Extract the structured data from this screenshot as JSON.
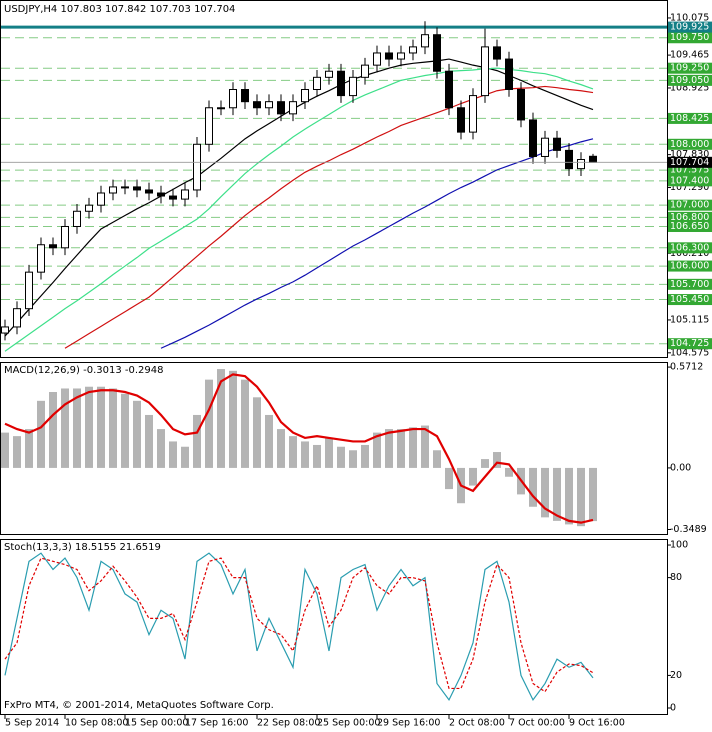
{
  "chart_data": [
    {
      "type": "candlestick",
      "title": "USDJPY,H4  107.803 107.842 107.703 107.704",
      "categories": [
        "5 Sep 2014",
        null,
        null,
        null,
        null,
        "10 Sep 08:00",
        null,
        null,
        null,
        null,
        "15 Sep 00:00",
        null,
        null,
        null,
        null,
        "17 Sep 16:00",
        null,
        null,
        null,
        null,
        null,
        "22 Sep 08:00",
        null,
        null,
        null,
        null,
        "25 Sep 00:00",
        null,
        null,
        null,
        null,
        "29 Sep 16:00",
        null,
        null,
        null,
        null,
        null,
        "2 Oct 08:00",
        null,
        null,
        null,
        null,
        "7 Oct 00:00",
        null,
        null,
        null,
        null,
        "9 Oct 16:00",
        null,
        null
      ],
      "open": [
        104.9,
        105.0,
        105.3,
        105.9,
        106.35,
        106.3,
        106.65,
        106.9,
        107.0,
        107.2,
        107.3,
        107.3,
        107.25,
        107.2,
        107.15,
        107.1,
        107.25,
        108.0,
        108.6,
        108.6,
        108.9,
        108.7,
        108.6,
        108.7,
        108.5,
        108.7,
        108.9,
        109.1,
        109.2,
        108.8,
        109.1,
        109.3,
        109.5,
        109.4,
        109.5,
        109.6,
        109.8,
        109.2,
        108.6,
        108.2,
        108.8,
        109.6,
        109.4,
        108.9,
        108.4,
        107.8,
        108.1,
        107.9,
        107.6,
        107.803
      ],
      "high": [
        105.12,
        105.42,
        106.02,
        106.47,
        106.47,
        106.77,
        107.02,
        107.12,
        107.32,
        107.42,
        107.42,
        107.42,
        107.37,
        107.32,
        107.27,
        107.37,
        108.12,
        108.72,
        108.72,
        109.02,
        109.02,
        108.82,
        108.82,
        108.82,
        108.82,
        109.02,
        109.22,
        109.32,
        109.32,
        109.22,
        109.42,
        109.62,
        109.62,
        109.62,
        109.72,
        110.02,
        109.92,
        109.32,
        108.72,
        108.92,
        109.9,
        109.72,
        109.52,
        109.02,
        108.52,
        108.22,
        108.22,
        108.02,
        107.87,
        107.842
      ],
      "low": [
        104.78,
        104.88,
        105.18,
        105.78,
        106.18,
        106.18,
        106.53,
        106.78,
        106.88,
        107.08,
        107.18,
        107.13,
        107.08,
        107.03,
        106.98,
        106.98,
        107.13,
        107.88,
        108.48,
        108.48,
        108.58,
        108.48,
        108.48,
        108.38,
        108.38,
        108.58,
        108.78,
        108.98,
        108.68,
        108.68,
        108.98,
        109.18,
        109.28,
        109.28,
        109.38,
        109.48,
        109.08,
        108.48,
        108.08,
        108.08,
        108.68,
        109.28,
        108.78,
        108.28,
        107.68,
        107.68,
        107.78,
        107.48,
        107.48,
        107.703
      ],
      "close": [
        105.0,
        105.3,
        105.9,
        106.35,
        106.3,
        106.65,
        106.9,
        107.0,
        107.2,
        107.3,
        107.3,
        107.25,
        107.2,
        107.15,
        107.1,
        107.25,
        108.0,
        108.6,
        108.6,
        108.9,
        108.7,
        108.6,
        108.7,
        108.5,
        108.7,
        108.9,
        109.1,
        109.2,
        108.8,
        109.1,
        109.3,
        109.5,
        109.4,
        109.5,
        109.6,
        109.8,
        109.2,
        108.6,
        108.2,
        108.8,
        109.6,
        109.4,
        108.9,
        108.4,
        107.8,
        108.1,
        107.9,
        107.6,
        107.75,
        107.704
      ],
      "up_color": "#ffffff",
      "down_color": "#000000",
      "wick_color": "#000000",
      "lines": [
        {
          "color": "#000000",
          "values": [
            104.85,
            105.07,
            105.29,
            105.51,
            105.73,
            105.96,
            106.18,
            106.4,
            106.61,
            106.72,
            106.83,
            106.94,
            107.04,
            107.15,
            107.26,
            107.37,
            107.47,
            107.62,
            107.77,
            107.93,
            108.09,
            108.22,
            108.34,
            108.46,
            108.58,
            108.69,
            108.79,
            108.88,
            108.98,
            109.07,
            109.13,
            109.19,
            109.25,
            109.3,
            109.33,
            109.35,
            109.37,
            109.4,
            109.35,
            109.3,
            109.26,
            109.21,
            109.13,
            109.05,
            108.96,
            108.88,
            108.8,
            108.72,
            108.64,
            108.57
          ]
        },
        {
          "color": "#3ee08a",
          "values": [
            104.6,
            104.74,
            104.88,
            105.02,
            105.16,
            105.3,
            105.43,
            105.57,
            105.71,
            105.86,
            106.0,
            106.14,
            106.29,
            106.41,
            106.53,
            106.65,
            106.77,
            106.94,
            107.14,
            107.33,
            107.52,
            107.68,
            107.83,
            107.97,
            108.12,
            108.25,
            108.37,
            108.49,
            108.61,
            108.72,
            108.81,
            108.89,
            108.97,
            109.05,
            109.09,
            109.13,
            109.16,
            109.2,
            109.21,
            109.22,
            109.24,
            109.25,
            109.23,
            109.21,
            109.18,
            109.16,
            109.11,
            109.04,
            108.98,
            108.91
          ]
        },
        {
          "color": "#d01010",
          "values": [
            null,
            null,
            null,
            null,
            null,
            104.65,
            104.77,
            104.89,
            105.01,
            105.13,
            105.25,
            105.37,
            105.49,
            105.65,
            105.82,
            105.99,
            106.16,
            106.33,
            106.49,
            106.66,
            106.83,
            106.98,
            107.12,
            107.27,
            107.41,
            107.54,
            107.64,
            107.73,
            107.83,
            107.92,
            108.02,
            108.12,
            108.21,
            108.31,
            108.38,
            108.45,
            108.52,
            108.59,
            108.67,
            108.74,
            108.81,
            108.88,
            108.91,
            108.92,
            108.93,
            108.95,
            108.93,
            108.9,
            108.88,
            108.85
          ]
        },
        {
          "color": "#1010b0",
          "values": [
            null,
            null,
            null,
            null,
            null,
            null,
            null,
            null,
            null,
            null,
            null,
            null,
            null,
            104.65,
            104.74,
            104.83,
            104.93,
            105.03,
            105.14,
            105.25,
            105.36,
            105.46,
            105.55,
            105.65,
            105.74,
            105.85,
            105.97,
            106.09,
            106.21,
            106.33,
            106.43,
            106.54,
            106.65,
            106.76,
            106.87,
            106.97,
            107.08,
            107.19,
            107.29,
            107.38,
            107.48,
            107.58,
            107.65,
            107.72,
            107.79,
            107.87,
            107.93,
            107.98,
            108.04,
            108.09
          ]
        }
      ],
      "highlight_level": 109.925,
      "highlight_color": "#147f86",
      "levels": [
        {
          "value": 109.75,
          "label": "109.750"
        },
        {
          "value": 109.25,
          "label": "109.250"
        },
        {
          "value": 109.05,
          "label": "109.050"
        },
        108.425,
        {
          "value": 108.0,
          "label": "108.000"
        },
        {
          "value": 107.575,
          "label": "107.575"
        },
        {
          "value": 107.4,
          "label": "107.400"
        },
        {
          "value": 107.0,
          "label": "107.000"
        },
        {
          "value": 106.8,
          "label": "106.800"
        },
        {
          "value": 106.65,
          "label": "106.650"
        },
        {
          "value": 106.3,
          "label": "106.300"
        },
        {
          "value": 106.0,
          "label": "106.000"
        },
        {
          "value": 105.7,
          "label": "105.700"
        },
        {
          "value": 105.45,
          "label": "105.450"
        },
        {
          "value": 104.725,
          "label": "104.725"
        }
      ],
      "level_color": "#33a833",
      "current_price": 107.704,
      "ylim": [
        104.49,
        110.37
      ],
      "yticks": [
        110.075,
        109.465,
        108.925,
        {
          "value": 107.83,
          "label": "107.830"
        },
        {
          "value": 107.29,
          "label": "107.290"
        },
        {
          "value": 106.21,
          "label": "106.210"
        },
        105.115,
        104.575
      ]
    },
    {
      "type": "combo",
      "title": "MACD(12,26,9) -0.3013 -0.2948",
      "series": [
        {
          "style": "bar",
          "color": "#b4b4b4",
          "values": [
            0.2,
            0.18,
            0.22,
            0.38,
            0.43,
            0.45,
            0.45,
            0.46,
            0.46,
            0.45,
            0.42,
            0.38,
            0.3,
            0.22,
            0.15,
            0.12,
            0.3,
            0.5,
            0.56,
            0.55,
            0.5,
            0.4,
            0.3,
            0.22,
            0.18,
            0.15,
            0.13,
            0.17,
            0.12,
            0.1,
            0.13,
            0.2,
            0.22,
            0.22,
            0.23,
            0.24,
            0.1,
            -0.12,
            -0.2,
            -0.1,
            0.05,
            0.09,
            -0.05,
            -0.15,
            -0.22,
            -0.28,
            -0.3,
            -0.32,
            -0.33,
            -0.3013
          ]
        },
        {
          "style": "line",
          "color": "#e00000",
          "values": [
            0.25,
            0.22,
            0.2,
            0.23,
            0.3,
            0.36,
            0.4,
            0.43,
            0.44,
            0.44,
            0.43,
            0.41,
            0.37,
            0.3,
            0.22,
            0.19,
            0.2,
            0.33,
            0.49,
            0.53,
            0.52,
            0.46,
            0.37,
            0.26,
            0.2,
            0.17,
            0.18,
            0.17,
            0.16,
            0.15,
            0.15,
            0.18,
            0.2,
            0.21,
            0.22,
            0.22,
            0.18,
            0.05,
            -0.1,
            -0.13,
            -0.05,
            0.03,
            0.02,
            -0.07,
            -0.16,
            -0.23,
            -0.27,
            -0.3,
            -0.31,
            -0.2948
          ]
        }
      ],
      "ylim": [
        -0.38,
        0.6
      ],
      "yticks": [
        0.5712,
        {
          "value": 0,
          "label": "0.00"
        },
        -0.3489
      ]
    },
    {
      "type": "line",
      "title": "Stoch(13,3,3) 18.5155 21.6519",
      "annotation": "FxPro MT4, © 2001-2014, MetaQuotes Software Corp.",
      "series": [
        {
          "style": "solid",
          "color": "#2a9db0",
          "values": [
            20,
            55,
            90,
            95,
            85,
            92,
            80,
            60,
            90,
            85,
            70,
            65,
            45,
            60,
            55,
            30,
            90,
            95,
            88,
            70,
            85,
            35,
            55,
            40,
            25,
            85,
            70,
            35,
            80,
            85,
            88,
            60,
            75,
            85,
            75,
            80,
            15,
            5,
            20,
            40,
            85,
            90,
            65,
            20,
            5,
            15,
            30,
            25,
            28,
            18.5155
          ]
        },
        {
          "style": "dashed",
          "color": "#e00000",
          "values": [
            30,
            40,
            75,
            92,
            90,
            88,
            85,
            72,
            78,
            87,
            78,
            68,
            55,
            55,
            58,
            42,
            65,
            90,
            92,
            80,
            80,
            55,
            48,
            45,
            35,
            60,
            75,
            50,
            60,
            80,
            86,
            75,
            70,
            80,
            80,
            78,
            40,
            12,
            12,
            30,
            65,
            88,
            80,
            40,
            15,
            10,
            22,
            27,
            26,
            21.6519
          ]
        }
      ],
      "ylim": [
        -4.3,
        103.7
      ],
      "yticks": [
        100,
        80,
        20,
        0
      ]
    }
  ]
}
